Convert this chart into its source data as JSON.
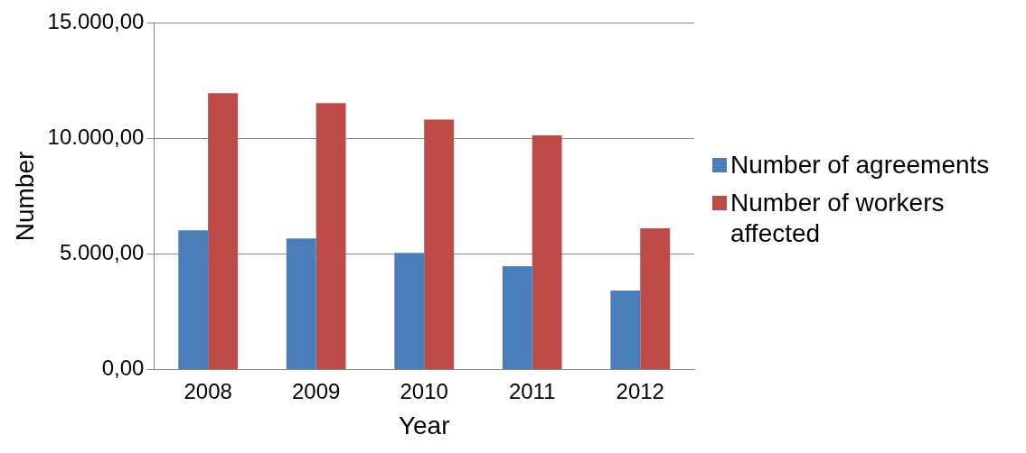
{
  "chart_data": {
    "type": "bar",
    "xlabel": "Year",
    "ylabel": "Number",
    "categories": [
      "2008",
      "2009",
      "2010",
      "2011",
      "2012"
    ],
    "series": [
      {
        "name": "Number of agreements",
        "color": "#4a7ebb",
        "values": [
          6030,
          5670,
          5050,
          4470,
          3420
        ]
      },
      {
        "name": "Number of workers affected",
        "color": "#be4b48",
        "values": [
          11960,
          11530,
          10820,
          10140,
          6110
        ]
      }
    ],
    "ylim": [
      0,
      15000
    ],
    "yticks": [
      {
        "value": 0,
        "label": "0,00"
      },
      {
        "value": 5000,
        "label": "5.000,00"
      },
      {
        "value": 10000,
        "label": "10.000,00"
      },
      {
        "value": 15000,
        "label": "15.000,00"
      }
    ],
    "grid": "y",
    "legend": "right"
  }
}
